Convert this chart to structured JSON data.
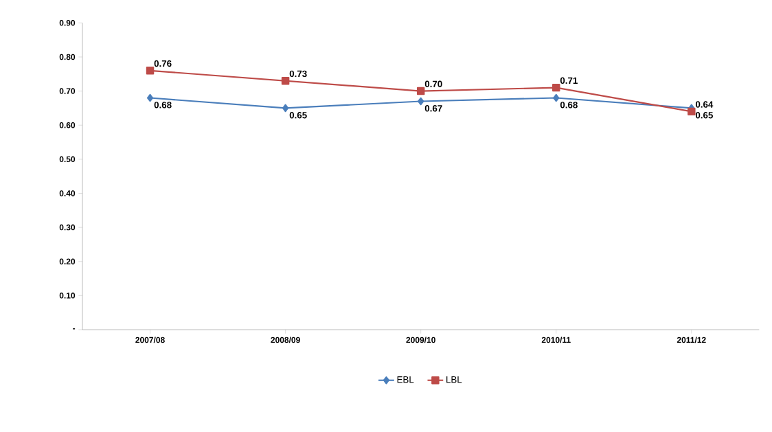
{
  "chart_data": {
    "type": "line",
    "categories": [
      "2007/08",
      "2008/09",
      "2009/10",
      "2010/11",
      "2011/12"
    ],
    "series": [
      {
        "name": "EBL",
        "color": "#4a7ebb",
        "marker": "diamond",
        "values": [
          0.68,
          0.65,
          0.67,
          0.68,
          0.65
        ],
        "value_labels": [
          "0.68",
          "0.65",
          "0.67",
          "0.68",
          "0.65"
        ]
      },
      {
        "name": "LBL",
        "color": "#be4b48",
        "marker": "square",
        "values": [
          0.76,
          0.73,
          0.7,
          0.71,
          0.64
        ],
        "value_labels": [
          "0.76",
          "0.73",
          "0.70",
          "0.71",
          "0.64"
        ]
      }
    ],
    "ylim": [
      0,
      0.9
    ],
    "yticks": [
      {
        "value": 0,
        "label": "-"
      },
      {
        "value": 0.1,
        "label": "0.10"
      },
      {
        "value": 0.2,
        "label": "0.20"
      },
      {
        "value": 0.3,
        "label": "0.30"
      },
      {
        "value": 0.4,
        "label": "0.40"
      },
      {
        "value": 0.5,
        "label": "0.50"
      },
      {
        "value": 0.6,
        "label": "0.60"
      },
      {
        "value": 0.7,
        "label": "0.70"
      },
      {
        "value": 0.8,
        "label": "0.80"
      },
      {
        "value": 0.9,
        "label": "0.90"
      }
    ],
    "grid": false,
    "legend": "bottom"
  }
}
